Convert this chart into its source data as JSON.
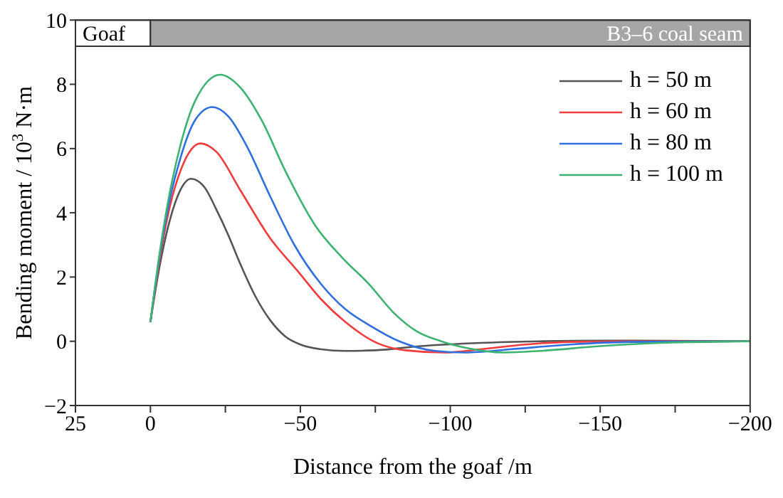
{
  "chart_data": {
    "type": "line",
    "xlabel": "Distance from the goaf /m",
    "ylabel": "Bending moment / 10$^{3}$N·m",
    "xlim": [
      25,
      -200
    ],
    "xticks": [
      25,
      0,
      {
        "value": -25,
        "label": null
      },
      -50,
      {
        "value": -75,
        "label": null
      },
      -100,
      {
        "value": -125,
        "label": null
      },
      -150,
      {
        "value": -175,
        "label": null
      },
      -200
    ],
    "ylim": [
      -2,
      10
    ],
    "yticks": [
      -2,
      0,
      2,
      4,
      6,
      8,
      10
    ],
    "legend": "top right",
    "marker": "none",
    "line_style": "solid",
    "bands": [
      {
        "axis": "x",
        "from": 25,
        "to": 0,
        "label": "Goaf",
        "color": "#ffffff"
      },
      {
        "axis": "x",
        "from": 0,
        "to": -200,
        "label": "B3–6 coal seam",
        "color": "#a6a6a6"
      }
    ],
    "series": [
      {
        "name": "h = 50 m",
        "color": "#555555",
        "x": [
          0,
          -3,
          -6,
          -9,
          -13.5,
          -18,
          -22,
          -26,
          -30,
          -35,
          -40,
          -45,
          -50,
          -57,
          -65,
          -75,
          -90,
          -110,
          -130,
          -150,
          -200
        ],
        "values": [
          0.6,
          2.3,
          3.6,
          4.5,
          5.06,
          4.8,
          4.1,
          3.3,
          2.4,
          1.4,
          0.65,
          0.15,
          -0.1,
          -0.25,
          -0.3,
          -0.28,
          -0.15,
          -0.05,
          0,
          0.02,
          0
        ]
      },
      {
        "name": "h = 60 m",
        "color": "#f03c3c",
        "x": [
          0,
          -3,
          -6,
          -10,
          -16.7,
          -22,
          -30,
          -40,
          -49,
          -57,
          -65,
          -76,
          -85,
          -98,
          -110,
          -125,
          -140,
          -160,
          -200
        ],
        "values": [
          0.6,
          2.5,
          4.0,
          5.3,
          6.16,
          5.9,
          4.7,
          3.2,
          2.2,
          1.3,
          0.6,
          -0.07,
          -0.28,
          -0.35,
          -0.25,
          -0.1,
          -0.02,
          0,
          0
        ]
      },
      {
        "name": "h = 80 m",
        "color": "#2f6fe0",
        "x": [
          0,
          -3,
          -6,
          -10,
          -15,
          -20.6,
          -26,
          -32,
          -40,
          -48,
          -57,
          -65,
          -73,
          -83,
          -95,
          -105,
          -120,
          -140,
          -160,
          -200
        ],
        "values": [
          0.6,
          2.6,
          4.2,
          5.7,
          6.9,
          7.29,
          7.0,
          6.1,
          4.5,
          3.0,
          1.77,
          1.0,
          0.5,
          0,
          -0.3,
          -0.35,
          -0.25,
          -0.1,
          -0.02,
          0
        ]
      },
      {
        "name": "h = 100 m",
        "color": "#3cb371",
        "x": [
          0,
          -3,
          -6,
          -10,
          -15,
          -23.3,
          -30,
          -37,
          -45,
          -55,
          -64,
          -73,
          -81,
          -89,
          -97,
          -105,
          -118,
          -130,
          -150,
          -170,
          -200
        ],
        "values": [
          0.6,
          2.7,
          4.4,
          6.1,
          7.5,
          8.3,
          7.9,
          6.9,
          5.3,
          3.6,
          2.6,
          1.77,
          0.9,
          0.3,
          0,
          -0.2,
          -0.35,
          -0.3,
          -0.15,
          -0.05,
          0
        ]
      }
    ]
  }
}
